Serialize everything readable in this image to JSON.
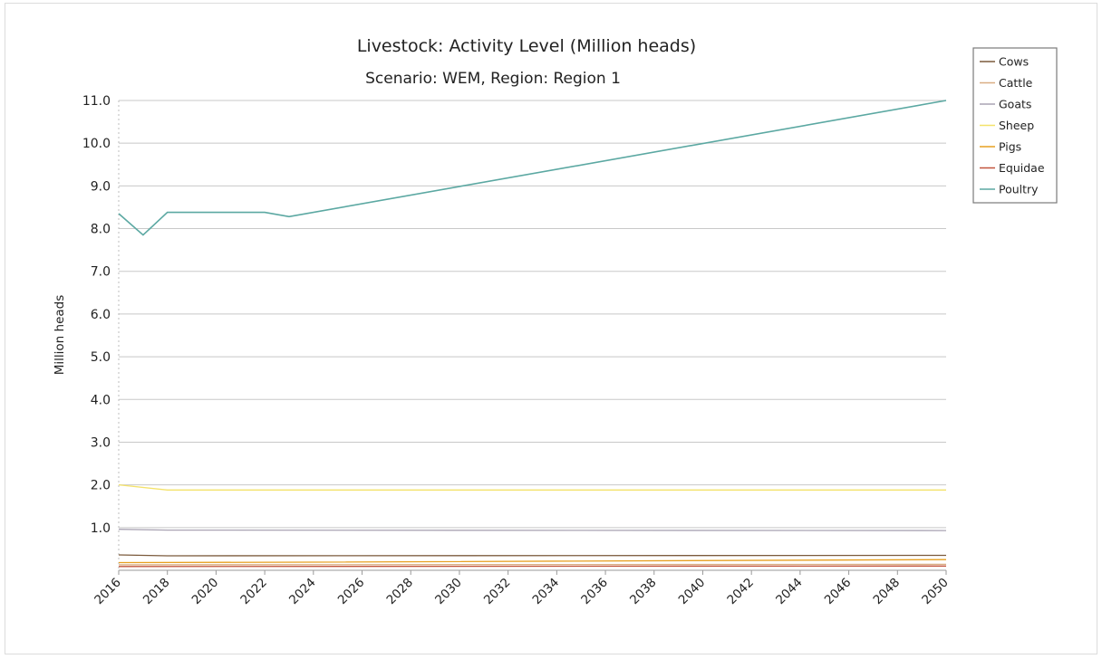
{
  "chart_data": {
    "type": "line",
    "title": "Livestock: Activity Level (Million heads)",
    "subtitle": "Scenario: WEM, Region: Region 1",
    "xlabel": "",
    "ylabel": "Million heads",
    "xlim": [
      2016,
      2050
    ],
    "ylim": [
      0,
      11
    ],
    "x_ticks": [
      2016,
      2018,
      2020,
      2022,
      2024,
      2026,
      2028,
      2030,
      2032,
      2034,
      2036,
      2038,
      2040,
      2042,
      2044,
      2046,
      2048,
      2050
    ],
    "y_ticks": [
      "1.0",
      "2.0",
      "3.0",
      "4.0",
      "5.0",
      "6.0",
      "7.0",
      "8.0",
      "9.0",
      "10.0",
      "11.0"
    ],
    "grid": true,
    "legend_position": "top-right",
    "series": [
      {
        "name": "Cows",
        "color": "#7b5a3c",
        "points": [
          [
            2016,
            0.36
          ],
          [
            2018,
            0.34
          ],
          [
            2050,
            0.35
          ]
        ]
      },
      {
        "name": "Cattle",
        "color": "#d9ae82",
        "points": [
          [
            2016,
            0.13
          ],
          [
            2050,
            0.14
          ]
        ]
      },
      {
        "name": "Goats",
        "color": "#a9a3b3",
        "points": [
          [
            2016,
            0.96
          ],
          [
            2018,
            0.94
          ],
          [
            2050,
            0.93
          ]
        ]
      },
      {
        "name": "Sheep",
        "color": "#f4e26a",
        "points": [
          [
            2016,
            2.0
          ],
          [
            2018,
            1.88
          ],
          [
            2050,
            1.88
          ]
        ]
      },
      {
        "name": "Pigs",
        "color": "#e7a020",
        "points": [
          [
            2016,
            0.18
          ],
          [
            2024,
            0.19
          ],
          [
            2050,
            0.25
          ]
        ]
      },
      {
        "name": "Equidae",
        "color": "#c2543c",
        "points": [
          [
            2016,
            0.09
          ],
          [
            2050,
            0.1
          ]
        ]
      },
      {
        "name": "Poultry",
        "color": "#5ba8a2",
        "points": [
          [
            2016,
            8.35
          ],
          [
            2017,
            7.85
          ],
          [
            2018,
            8.38
          ],
          [
            2022,
            8.38
          ],
          [
            2023,
            8.28
          ],
          [
            2050,
            11.0
          ]
        ]
      }
    ]
  }
}
